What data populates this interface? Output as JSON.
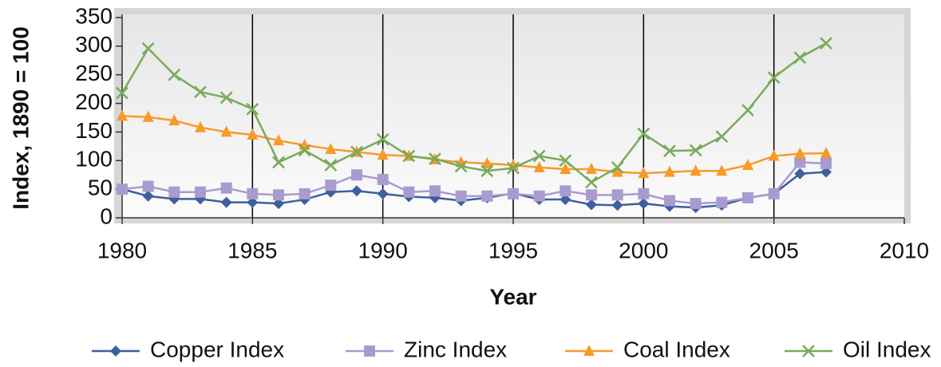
{
  "chart_data": {
    "type": "line",
    "x_label": "Year",
    "y_label": "Index, 1890 = 100",
    "x": [
      1980,
      1981,
      1982,
      1983,
      1984,
      1985,
      1986,
      1987,
      1988,
      1989,
      1990,
      1991,
      1992,
      1993,
      1994,
      1995,
      1996,
      1997,
      1998,
      1999,
      2000,
      2001,
      2002,
      2003,
      2004,
      2005,
      2006,
      2007
    ],
    "series": [
      {
        "name": "Copper Index",
        "color": "#3f5f9e",
        "marker": "diamond",
        "values": [
          50,
          38,
          33,
          33,
          27,
          27,
          25,
          32,
          45,
          47,
          42,
          37,
          35,
          30,
          35,
          43,
          32,
          32,
          23,
          22,
          25,
          20,
          18,
          22,
          35,
          42,
          77,
          80
        ]
      },
      {
        "name": "Zinc Index",
        "color": "#a99bd0",
        "marker": "square",
        "values": [
          50,
          55,
          45,
          45,
          52,
          42,
          40,
          42,
          57,
          75,
          67,
          45,
          47,
          38,
          38,
          42,
          38,
          47,
          40,
          40,
          42,
          30,
          25,
          27,
          35,
          42,
          97,
          95
        ]
      },
      {
        "name": "Coal Index",
        "color": "#f79a2a",
        "marker": "triangle",
        "values": [
          178,
          176,
          170,
          158,
          150,
          145,
          135,
          127,
          120,
          115,
          110,
          108,
          102,
          97,
          95,
          92,
          88,
          85,
          85,
          80,
          78,
          80,
          82,
          82,
          92,
          108,
          112,
          113
        ]
      },
      {
        "name": "Oil Index",
        "color": "#7aaa5a",
        "marker": "x",
        "values": [
          218,
          296,
          250,
          220,
          210,
          190,
          97,
          118,
          92,
          115,
          137,
          108,
          103,
          90,
          82,
          87,
          108,
          100,
          62,
          88,
          147,
          117,
          118,
          142,
          188,
          245,
          280,
          305
        ]
      }
    ],
    "xlim": [
      1980,
      2010
    ],
    "xticks": [
      1980,
      1985,
      1990,
      1995,
      2000,
      2005,
      2010
    ],
    "ylim": [
      0,
      350
    ],
    "yticks": [
      0,
      50,
      100,
      150,
      200,
      250,
      300,
      350
    ],
    "grid": "x",
    "legend": "bottom"
  }
}
